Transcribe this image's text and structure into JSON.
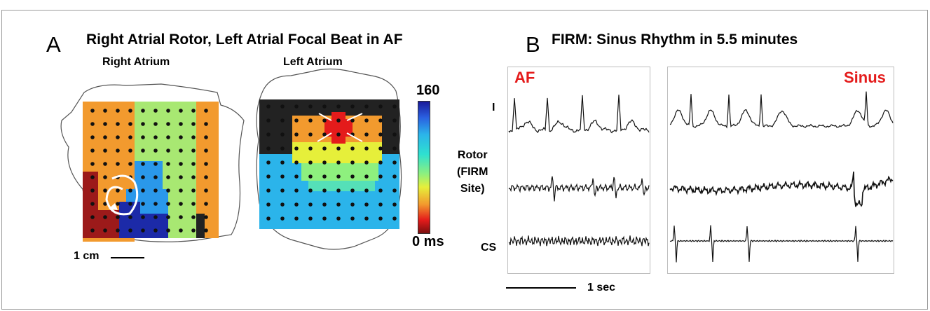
{
  "panel_a": {
    "letter": "A",
    "title": "Right Atrial Rotor, Left Atrial Focal Beat in AF",
    "right_atrium_label": "Right Atrium",
    "left_atrium_label": "Left Atrium",
    "scale_bar_label": "1 cm",
    "colorbar": {
      "max_label": "160",
      "min_label": "0 ms"
    }
  },
  "panel_b": {
    "letter": "B",
    "title": "FIRM: Sinus Rhythm in 5.5 minutes",
    "af_label": "AF",
    "sinus_label": "Sinus",
    "lead_i": "I",
    "rotor_lines": [
      "Rotor",
      "(FIRM",
      "Site)"
    ],
    "lead_cs": "CS",
    "time_scale_label": "1 sec"
  },
  "colors": {
    "annotation_red": "#e41b1b",
    "map_orange": "#f29a2e",
    "map_green": "#a8e872",
    "map_blue": "#2a98ea",
    "map_navy": "#1c2aa8",
    "map_darkred": "#9c1a1a",
    "map_cyan": "#2bb4ea",
    "map_black": "#222222"
  }
}
